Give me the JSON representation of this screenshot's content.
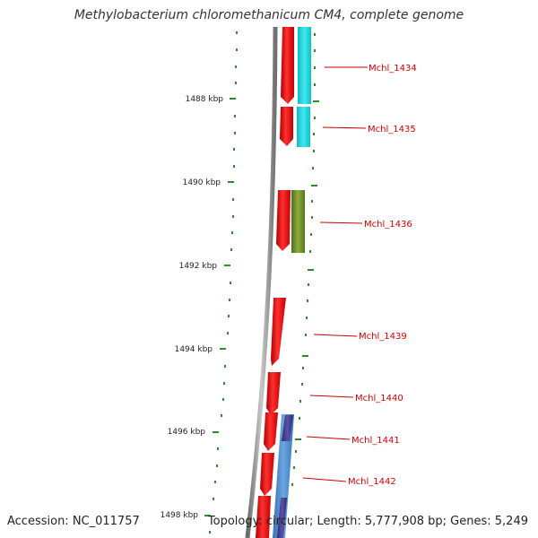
{
  "title": "Methylobacterium chloromethanicum CM4, complete genome",
  "footer": {
    "accession": "Accession: NC_011757",
    "stats": "Topology: circular; Length: 5,777,908 bp; Genes: 5,249"
  },
  "colors": {
    "tick": "#2e8b2e",
    "gene_label": "#cc0000",
    "backbone": "#808080",
    "cds": "#ee1111",
    "cyan": "#22d0d8",
    "olive": "#6b8e23",
    "blue": "#4a86c8",
    "purple": "#483d8b"
  },
  "scale": {
    "labels": [
      "1488 kbp",
      "1490 kbp",
      "1492 kbp",
      "1494 kbp",
      "1496 kbp",
      "1498 kbp"
    ]
  },
  "genes": [
    "Mchl_1434",
    "Mchl_1435",
    "Mchl_1436",
    "Mchl_1439",
    "Mchl_1440",
    "Mchl_1441",
    "Mchl_1442"
  ]
}
